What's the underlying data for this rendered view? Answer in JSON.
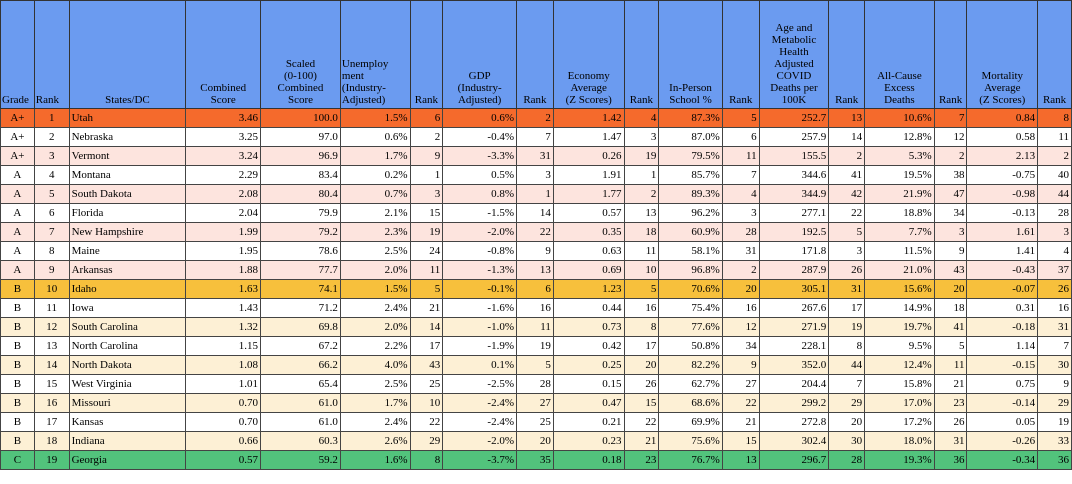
{
  "headers": [
    {
      "label": "Grade",
      "align": "left"
    },
    {
      "label": "Rank",
      "align": "left"
    },
    {
      "label": "States/DC",
      "align": "center"
    },
    {
      "label": "Combined\nScore",
      "align": "center"
    },
    {
      "label": "Scaled\n(0-100)\nCombined\nScore",
      "align": "center"
    },
    {
      "label": "Unemploy\nment\n(Industry-\nAdjusted)",
      "align": "left"
    },
    {
      "label": "Rank",
      "align": "center"
    },
    {
      "label": "GDP\n(Industry-\nAdjusted)",
      "align": "center"
    },
    {
      "label": "Rank",
      "align": "center"
    },
    {
      "label": "Economy\nAverage\n(Z Scores)",
      "align": "center"
    },
    {
      "label": "Rank",
      "align": "center"
    },
    {
      "label": "In-Person\nSchool %",
      "align": "center"
    },
    {
      "label": "Rank",
      "align": "center"
    },
    {
      "label": "Age and\nMetabolic\nHealth\nAdjusted\nCOVID\nDeaths per\n100K",
      "align": "center"
    },
    {
      "label": "Rank",
      "align": "center"
    },
    {
      "label": "All-Cause\nExcess\nDeaths",
      "align": "center"
    },
    {
      "label": "Rank",
      "align": "center"
    },
    {
      "label": "Mortality\nAverage\n(Z Scores)",
      "align": "center"
    },
    {
      "label": "Rank",
      "align": "center"
    }
  ],
  "colors": {
    "header": "#6b9bf0",
    "top_A": "#f56a2c",
    "top_B": "#f7c03c",
    "top_C": "#52c37c",
    "band_A": "#fde4de",
    "band_B": "#fdf0d5"
  },
  "rows": [
    {
      "grade": "A+",
      "rank": "1",
      "state": "Utah",
      "combined": "3.46",
      "scaled": "100.0",
      "unemp": "1.5%",
      "unemp_rank": "6",
      "gdp": "0.6%",
      "gdp_rank": "2",
      "econ": "1.42",
      "econ_rank": "4",
      "school": "87.3%",
      "school_rank": "5",
      "covid": "252.7",
      "covid_rank": "13",
      "excess": "10.6%",
      "excess_rank": "7",
      "mort": "0.84",
      "mort_rank": "8"
    },
    {
      "grade": "A+",
      "rank": "2",
      "state": "Nebraska",
      "combined": "3.25",
      "scaled": "97.0",
      "unemp": "0.6%",
      "unemp_rank": "2",
      "gdp": "-0.4%",
      "gdp_rank": "7",
      "econ": "1.47",
      "econ_rank": "3",
      "school": "87.0%",
      "school_rank": "6",
      "covid": "257.9",
      "covid_rank": "14",
      "excess": "12.8%",
      "excess_rank": "12",
      "mort": "0.58",
      "mort_rank": "11"
    },
    {
      "grade": "A+",
      "rank": "3",
      "state": "Vermont",
      "combined": "3.24",
      "scaled": "96.9",
      "unemp": "1.7%",
      "unemp_rank": "9",
      "gdp": "-3.3%",
      "gdp_rank": "31",
      "econ": "0.26",
      "econ_rank": "19",
      "school": "79.5%",
      "school_rank": "11",
      "covid": "155.5",
      "covid_rank": "2",
      "excess": "5.3%",
      "excess_rank": "2",
      "mort": "2.13",
      "mort_rank": "2"
    },
    {
      "grade": "A",
      "rank": "4",
      "state": "Montana",
      "combined": "2.29",
      "scaled": "83.4",
      "unemp": "0.2%",
      "unemp_rank": "1",
      "gdp": "0.5%",
      "gdp_rank": "3",
      "econ": "1.91",
      "econ_rank": "1",
      "school": "85.7%",
      "school_rank": "7",
      "covid": "344.6",
      "covid_rank": "41",
      "excess": "19.5%",
      "excess_rank": "38",
      "mort": "-0.75",
      "mort_rank": "40"
    },
    {
      "grade": "A",
      "rank": "5",
      "state": "South Dakota",
      "combined": "2.08",
      "scaled": "80.4",
      "unemp": "0.7%",
      "unemp_rank": "3",
      "gdp": "0.8%",
      "gdp_rank": "1",
      "econ": "1.77",
      "econ_rank": "2",
      "school": "89.3%",
      "school_rank": "4",
      "covid": "344.9",
      "covid_rank": "42",
      "excess": "21.9%",
      "excess_rank": "47",
      "mort": "-0.98",
      "mort_rank": "44"
    },
    {
      "grade": "A",
      "rank": "6",
      "state": "Florida",
      "combined": "2.04",
      "scaled": "79.9",
      "unemp": "2.1%",
      "unemp_rank": "15",
      "gdp": "-1.5%",
      "gdp_rank": "14",
      "econ": "0.57",
      "econ_rank": "13",
      "school": "96.2%",
      "school_rank": "3",
      "covid": "277.1",
      "covid_rank": "22",
      "excess": "18.8%",
      "excess_rank": "34",
      "mort": "-0.13",
      "mort_rank": "28"
    },
    {
      "grade": "A",
      "rank": "7",
      "state": "New Hampshire",
      "combined": "1.99",
      "scaled": "79.2",
      "unemp": "2.3%",
      "unemp_rank": "19",
      "gdp": "-2.0%",
      "gdp_rank": "22",
      "econ": "0.35",
      "econ_rank": "18",
      "school": "60.9%",
      "school_rank": "28",
      "covid": "192.5",
      "covid_rank": "5",
      "excess": "7.7%",
      "excess_rank": "3",
      "mort": "1.61",
      "mort_rank": "3"
    },
    {
      "grade": "A",
      "rank": "8",
      "state": "Maine",
      "combined": "1.95",
      "scaled": "78.6",
      "unemp": "2.5%",
      "unemp_rank": "24",
      "gdp": "-0.8%",
      "gdp_rank": "9",
      "econ": "0.63",
      "econ_rank": "11",
      "school": "58.1%",
      "school_rank": "31",
      "covid": "171.8",
      "covid_rank": "3",
      "excess": "11.5%",
      "excess_rank": "9",
      "mort": "1.41",
      "mort_rank": "4"
    },
    {
      "grade": "A",
      "rank": "9",
      "state": "Arkansas",
      "combined": "1.88",
      "scaled": "77.7",
      "unemp": "2.0%",
      "unemp_rank": "11",
      "gdp": "-1.3%",
      "gdp_rank": "13",
      "econ": "0.69",
      "econ_rank": "10",
      "school": "96.8%",
      "school_rank": "2",
      "covid": "287.9",
      "covid_rank": "26",
      "excess": "21.0%",
      "excess_rank": "43",
      "mort": "-0.43",
      "mort_rank": "37"
    },
    {
      "grade": "B",
      "rank": "10",
      "state": "Idaho",
      "combined": "1.63",
      "scaled": "74.1",
      "unemp": "1.5%",
      "unemp_rank": "5",
      "gdp": "-0.1%",
      "gdp_rank": "6",
      "econ": "1.23",
      "econ_rank": "5",
      "school": "70.6%",
      "school_rank": "20",
      "covid": "305.1",
      "covid_rank": "31",
      "excess": "15.6%",
      "excess_rank": "20",
      "mort": "-0.07",
      "mort_rank": "26"
    },
    {
      "grade": "B",
      "rank": "11",
      "state": "Iowa",
      "combined": "1.43",
      "scaled": "71.2",
      "unemp": "2.4%",
      "unemp_rank": "21",
      "gdp": "-1.6%",
      "gdp_rank": "16",
      "econ": "0.44",
      "econ_rank": "16",
      "school": "75.4%",
      "school_rank": "16",
      "covid": "267.6",
      "covid_rank": "17",
      "excess": "14.9%",
      "excess_rank": "18",
      "mort": "0.31",
      "mort_rank": "16"
    },
    {
      "grade": "B",
      "rank": "12",
      "state": "South Carolina",
      "combined": "1.32",
      "scaled": "69.8",
      "unemp": "2.0%",
      "unemp_rank": "14",
      "gdp": "-1.0%",
      "gdp_rank": "11",
      "econ": "0.73",
      "econ_rank": "8",
      "school": "77.6%",
      "school_rank": "12",
      "covid": "271.9",
      "covid_rank": "19",
      "excess": "19.7%",
      "excess_rank": "41",
      "mort": "-0.18",
      "mort_rank": "31"
    },
    {
      "grade": "B",
      "rank": "13",
      "state": "North Carolina",
      "combined": "1.15",
      "scaled": "67.2",
      "unemp": "2.2%",
      "unemp_rank": "17",
      "gdp": "-1.9%",
      "gdp_rank": "19",
      "econ": "0.42",
      "econ_rank": "17",
      "school": "50.8%",
      "school_rank": "34",
      "covid": "228.1",
      "covid_rank": "8",
      "excess": "9.5%",
      "excess_rank": "5",
      "mort": "1.14",
      "mort_rank": "7"
    },
    {
      "grade": "B",
      "rank": "14",
      "state": "North Dakota",
      "combined": "1.08",
      "scaled": "66.2",
      "unemp": "4.0%",
      "unemp_rank": "43",
      "gdp": "0.1%",
      "gdp_rank": "5",
      "econ": "0.25",
      "econ_rank": "20",
      "school": "82.2%",
      "school_rank": "9",
      "covid": "352.0",
      "covid_rank": "44",
      "excess": "12.4%",
      "excess_rank": "11",
      "mort": "-0.15",
      "mort_rank": "30"
    },
    {
      "grade": "B",
      "rank": "15",
      "state": "West Virginia",
      "combined": "1.01",
      "scaled": "65.4",
      "unemp": "2.5%",
      "unemp_rank": "25",
      "gdp": "-2.5%",
      "gdp_rank": "28",
      "econ": "0.15",
      "econ_rank": "26",
      "school": "62.7%",
      "school_rank": "27",
      "covid": "204.4",
      "covid_rank": "7",
      "excess": "15.8%",
      "excess_rank": "21",
      "mort": "0.75",
      "mort_rank": "9"
    },
    {
      "grade": "B",
      "rank": "16",
      "state": "Missouri",
      "combined": "0.70",
      "scaled": "61.0",
      "unemp": "1.7%",
      "unemp_rank": "10",
      "gdp": "-2.4%",
      "gdp_rank": "27",
      "econ": "0.47",
      "econ_rank": "15",
      "school": "68.6%",
      "school_rank": "22",
      "covid": "299.2",
      "covid_rank": "29",
      "excess": "17.0%",
      "excess_rank": "23",
      "mort": "-0.14",
      "mort_rank": "29"
    },
    {
      "grade": "B",
      "rank": "17",
      "state": "Kansas",
      "combined": "0.70",
      "scaled": "61.0",
      "unemp": "2.4%",
      "unemp_rank": "22",
      "gdp": "-2.4%",
      "gdp_rank": "25",
      "econ": "0.21",
      "econ_rank": "22",
      "school": "69.9%",
      "school_rank": "21",
      "covid": "272.8",
      "covid_rank": "20",
      "excess": "17.2%",
      "excess_rank": "26",
      "mort": "0.05",
      "mort_rank": "19"
    },
    {
      "grade": "B",
      "rank": "18",
      "state": "Indiana",
      "combined": "0.66",
      "scaled": "60.3",
      "unemp": "2.6%",
      "unemp_rank": "29",
      "gdp": "-2.0%",
      "gdp_rank": "20",
      "econ": "0.23",
      "econ_rank": "21",
      "school": "75.6%",
      "school_rank": "15",
      "covid": "302.4",
      "covid_rank": "30",
      "excess": "18.0%",
      "excess_rank": "31",
      "mort": "-0.26",
      "mort_rank": "33"
    },
    {
      "grade": "C",
      "rank": "19",
      "state": "Georgia",
      "combined": "0.57",
      "scaled": "59.2",
      "unemp": "1.6%",
      "unemp_rank": "8",
      "gdp": "-3.7%",
      "gdp_rank": "35",
      "econ": "0.18",
      "econ_rank": "23",
      "school": "76.7%",
      "school_rank": "13",
      "covid": "296.7",
      "covid_rank": "28",
      "excess": "19.3%",
      "excess_rank": "36",
      "mort": "-0.34",
      "mort_rank": "36"
    }
  ]
}
